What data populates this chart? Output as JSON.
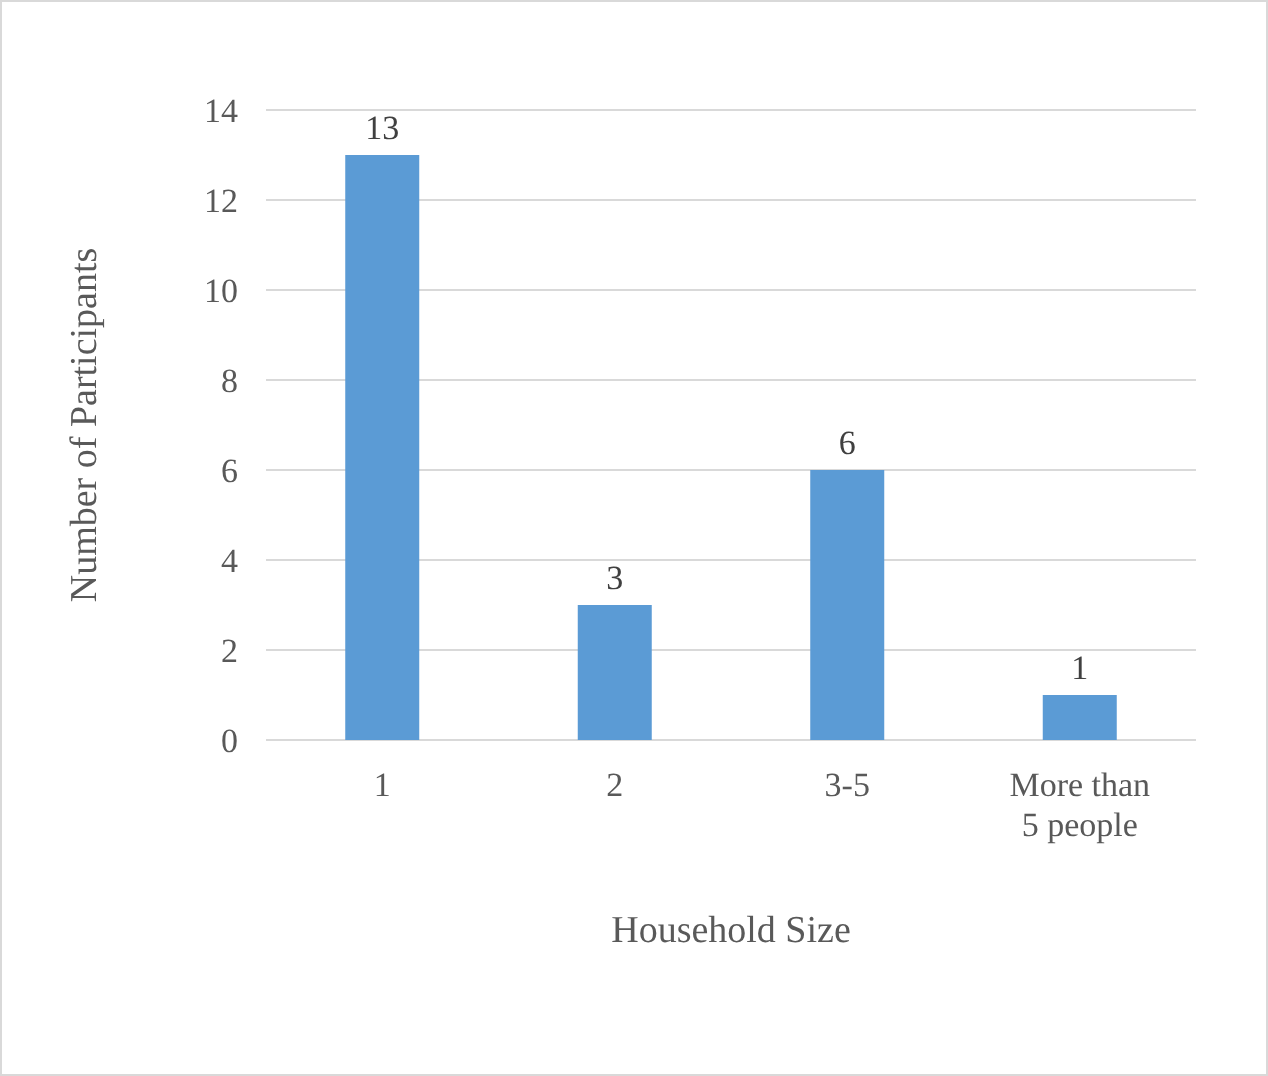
{
  "chart_data": {
    "type": "bar",
    "xlabel": "Household Size",
    "ylabel": "Number of Participants",
    "categories": [
      "1",
      "2",
      "3-5",
      "More than 5 people"
    ],
    "values": [
      13,
      3,
      6,
      1
    ],
    "color": "#5b9bd5",
    "ylim": [
      0,
      14
    ],
    "yticks": [
      0,
      2,
      4,
      6,
      8,
      10,
      12,
      14
    ],
    "grid": "y",
    "data_labels": true
  }
}
